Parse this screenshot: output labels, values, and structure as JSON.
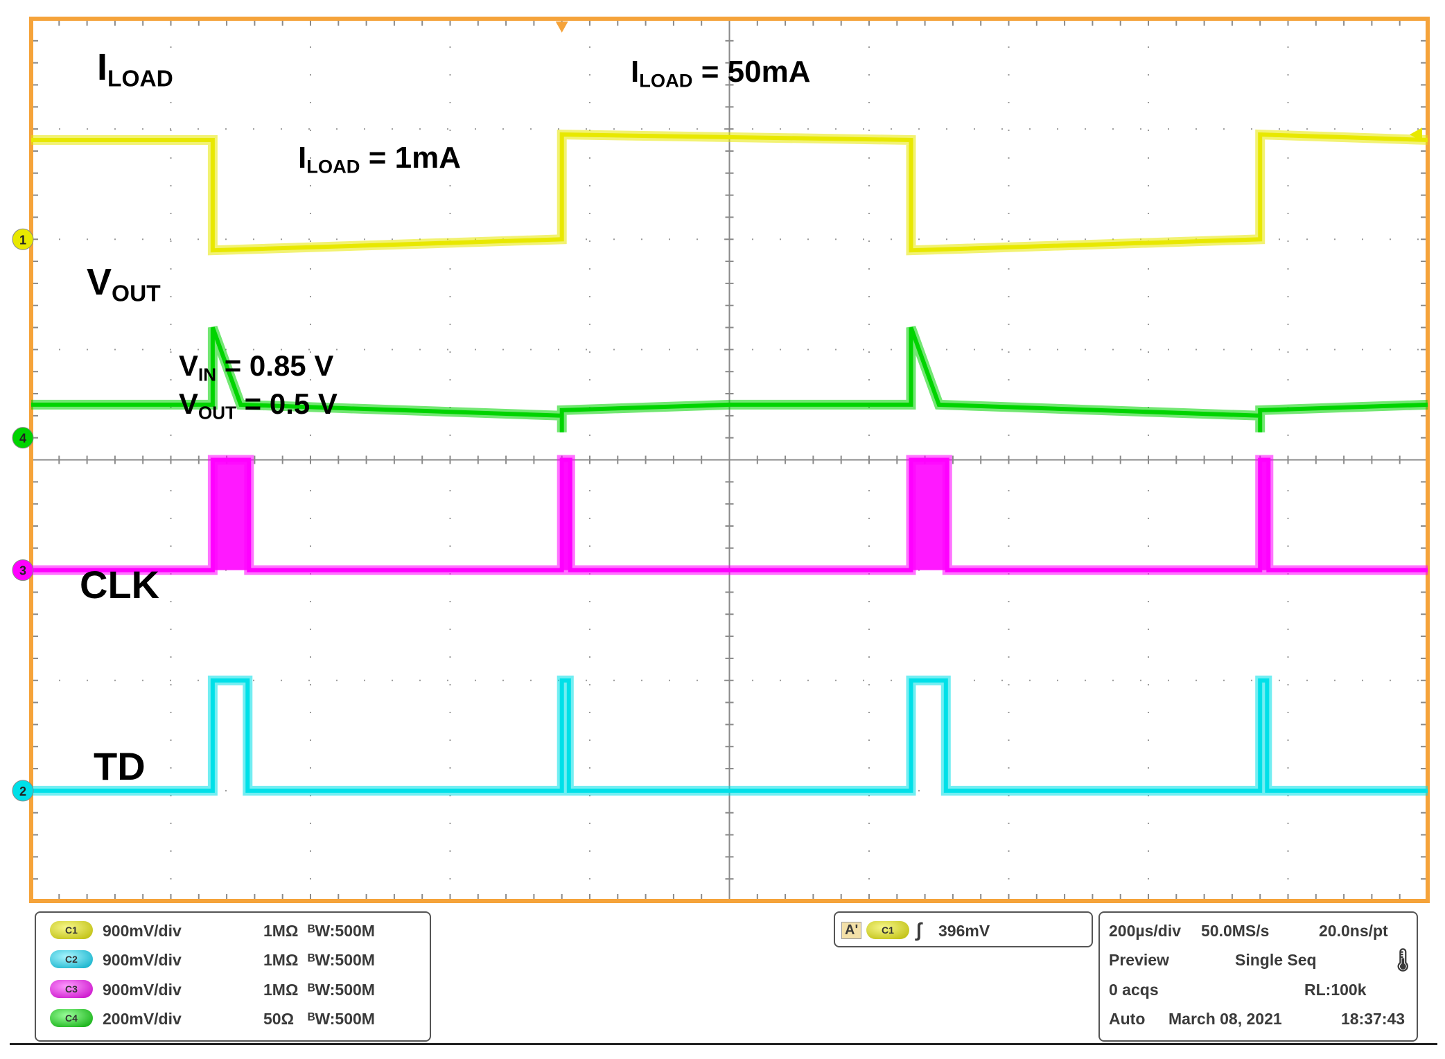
{
  "chart_data": {
    "type": "line",
    "title": "",
    "xlabel": "",
    "ylabel": "",
    "grid": true,
    "xlim": [
      0,
      10
    ],
    "ylim": [
      0,
      8
    ],
    "series": [
      {
        "name": "ILOAD",
        "channel": 1,
        "color": "#e8e800",
        "x": [
          0,
          1.3,
          1.3,
          3.8,
          3.8,
          6.3,
          6.3,
          8.8,
          8.8,
          10
        ],
        "y": [
          6.9,
          6.9,
          5.9,
          6.0,
          6.95,
          6.9,
          5.9,
          6.0,
          6.95,
          6.9
        ]
      },
      {
        "name": "VOUT",
        "channel": 4,
        "color": "#00d400",
        "x": [
          0,
          1.3,
          1.3,
          1.5,
          3.8,
          3.8,
          3.8,
          5.0,
          6.3,
          6.3,
          6.5,
          8.8,
          8.8,
          8.8,
          10
        ],
        "y": [
          4.5,
          4.5,
          5.2,
          4.5,
          4.4,
          4.25,
          4.45,
          4.5,
          4.5,
          5.2,
          4.5,
          4.4,
          4.25,
          4.45,
          4.5
        ]
      },
      {
        "name": "CLK",
        "channel": 3,
        "color": "#ff00ff",
        "x": [
          0,
          1.3,
          1.3,
          1.56,
          1.56,
          3.8,
          3.8,
          3.86,
          3.86,
          6.3,
          6.3,
          6.56,
          6.56,
          8.8,
          8.8,
          8.86,
          8.86,
          10
        ],
        "y": [
          3.0,
          3.0,
          4.0,
          4.0,
          3.0,
          3.0,
          4.0,
          4.0,
          3.0,
          3.0,
          4.0,
          4.0,
          3.0,
          3.0,
          4.0,
          4.0,
          3.0,
          3.0
        ]
      },
      {
        "name": "TD",
        "channel": 2,
        "color": "#00e0e8",
        "x": [
          0,
          1.3,
          1.3,
          1.55,
          1.55,
          3.8,
          3.8,
          3.85,
          3.85,
          6.3,
          6.3,
          6.55,
          6.55,
          8.8,
          8.8,
          8.85,
          8.85,
          10
        ],
        "y": [
          1.0,
          1.0,
          2.0,
          2.0,
          1.0,
          1.0,
          2.0,
          2.0,
          1.0,
          1.0,
          2.0,
          2.0,
          1.0,
          1.0,
          2.0,
          2.0,
          1.0,
          1.0
        ]
      }
    ],
    "annotations": {
      "iload_label": "I",
      "iload_sub": "LOAD",
      "iload_high_label": "I",
      "iload_high_sub": "LOAD",
      "iload_high_value": " = 50mA",
      "iload_low_label": "I",
      "iload_low_sub": "LOAD",
      "iload_low_value": " = 1mA",
      "vout_label": "V",
      "vout_sub": "OUT",
      "vin_label": "V",
      "vin_sub": "IN",
      "vin_value": " = 0.85 V",
      "vout_cond_label": "V",
      "vout_cond_sub": "OUT",
      "vout_cond_value": " = 0.5 V",
      "clk_label": "CLK",
      "td_label": "TD"
    },
    "channel_markers": [
      "1",
      "4",
      "3",
      "2"
    ]
  },
  "status_bar": {
    "channels": [
      {
        "pill": "C1",
        "scale": "900mV/div",
        "impedance": "1MΩ",
        "bw": "ᴮW:500M",
        "color": "yellow"
      },
      {
        "pill": "C2",
        "scale": "900mV/div",
        "impedance": "1MΩ",
        "bw": "ᴮW:500M",
        "color": "cyan"
      },
      {
        "pill": "C3",
        "scale": "900mV/div",
        "impedance": "1MΩ",
        "bw": "ᴮW:500M",
        "color": "magenta"
      },
      {
        "pill": "C4",
        "scale": "200mV/div",
        "impedance": "50Ω",
        "bw": "ᴮW:500M",
        "color": "green"
      }
    ],
    "trigger": {
      "mode_label": "A'",
      "source": "C1",
      "level": "396mV"
    },
    "timebase": {
      "time_div": "200µs/div",
      "sample_rate": "50.0MS/s",
      "resolution": "20.0ns/pt",
      "state": "Preview",
      "acq_mode": "Single Seq",
      "acqs": "0 acqs",
      "record_length": "RL:100k",
      "trigger_mode": "Auto",
      "date": "March 08, 2021",
      "time": "18:37:43"
    }
  }
}
